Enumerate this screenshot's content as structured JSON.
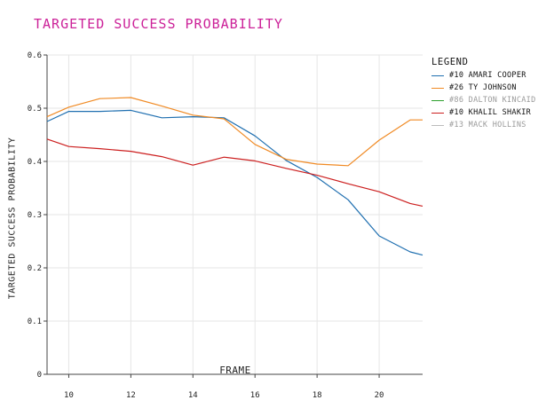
{
  "chart_data": {
    "type": "line",
    "title": "TARGETED SUCCESS PROBABILITY",
    "xlabel": "FRAME",
    "ylabel": "TARGETED SUCCESS PROBABILITY",
    "xlim": [
      9.3,
      21.4
    ],
    "ylim": [
      0,
      0.6
    ],
    "xticks": [
      10,
      12,
      14,
      16,
      18,
      20
    ],
    "yticks": [
      0,
      0.1,
      0.2,
      0.3,
      0.4,
      0.5,
      0.6
    ],
    "xtick_labels": [
      "10",
      "12",
      "14",
      "16",
      "18",
      "20"
    ],
    "ytick_labels": [
      "0",
      "0.1",
      "0.2",
      "0.3",
      "0.4",
      "0.5",
      "0.6"
    ],
    "grid": true,
    "legend_title": "LEGEND",
    "legend_position": "right",
    "series": [
      {
        "name": "#10 AMARI COOPER",
        "color": "#1f6fb0",
        "muted": false,
        "points": [
          [
            9.3,
            0.475
          ],
          [
            10,
            0.494
          ],
          [
            11,
            0.494
          ],
          [
            12,
            0.496
          ],
          [
            13,
            0.482
          ],
          [
            14,
            0.484
          ],
          [
            15,
            0.482
          ],
          [
            16,
            0.448
          ],
          [
            17,
            0.402
          ],
          [
            18,
            0.37
          ],
          [
            19,
            0.328
          ],
          [
            20,
            0.26
          ],
          [
            21,
            0.23
          ],
          [
            21.4,
            0.224
          ]
        ]
      },
      {
        "name": "#26 TY JOHNSON",
        "color": "#f08a24",
        "muted": false,
        "points": [
          [
            9.3,
            0.484
          ],
          [
            10,
            0.502
          ],
          [
            11,
            0.518
          ],
          [
            12,
            0.52
          ],
          [
            13,
            0.504
          ],
          [
            14,
            0.487
          ],
          [
            15,
            0.48
          ],
          [
            16,
            0.432
          ],
          [
            17,
            0.404
          ],
          [
            18,
            0.395
          ],
          [
            19,
            0.392
          ],
          [
            20,
            0.44
          ],
          [
            21,
            0.478
          ],
          [
            21.4,
            0.478
          ]
        ]
      },
      {
        "name": "#86 DALTON KINCAID",
        "color": "#2ca02c",
        "muted": true,
        "points": []
      },
      {
        "name": "#10 KHALIL SHAKIR",
        "color": "#cc1f1f",
        "muted": false,
        "points": [
          [
            9.3,
            0.442
          ],
          [
            10,
            0.428
          ],
          [
            11,
            0.424
          ],
          [
            12,
            0.419
          ],
          [
            13,
            0.409
          ],
          [
            14,
            0.393
          ],
          [
            15,
            0.408
          ],
          [
            16,
            0.401
          ],
          [
            17,
            0.387
          ],
          [
            18,
            0.374
          ],
          [
            19,
            0.358
          ],
          [
            20,
            0.343
          ],
          [
            21,
            0.321
          ],
          [
            21.4,
            0.316
          ]
        ]
      },
      {
        "name": "#13 MACK HOLLINS",
        "color": "#bbbbbb",
        "muted": true,
        "points": []
      }
    ]
  }
}
